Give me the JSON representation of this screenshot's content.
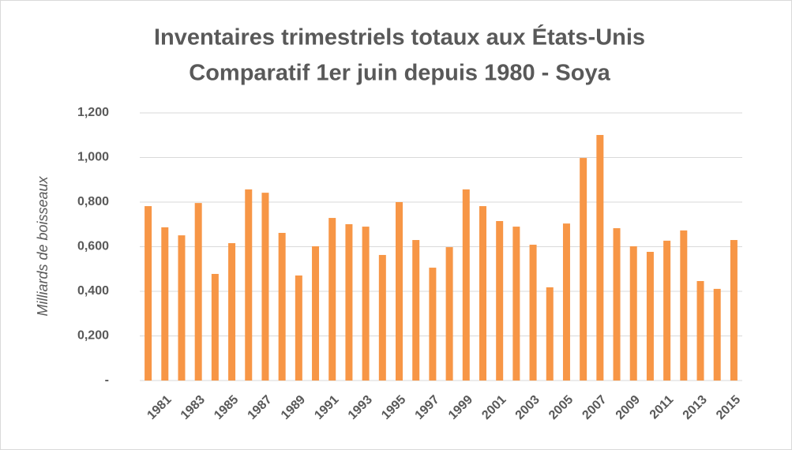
{
  "chart_data": {
    "type": "bar",
    "title": "Inventaires trimestriels totaux aux États-Unis",
    "subtitle": "Comparatif 1er juin depuis 1980 - Soya",
    "y_label": "Milliards de boisseaux",
    "categories": [
      null,
      "1981",
      null,
      "1983",
      null,
      "1985",
      null,
      "1987",
      null,
      "1989",
      null,
      "1991",
      null,
      "1993",
      null,
      "1995",
      null,
      "1997",
      null,
      "1999",
      null,
      "2001",
      null,
      "2003",
      null,
      "2005",
      null,
      "2007",
      null,
      "2009",
      null,
      "2011",
      null,
      "2013",
      null,
      "2015"
    ],
    "values": [
      0.782,
      0.687,
      0.651,
      0.796,
      0.478,
      0.616,
      0.857,
      0.842,
      0.662,
      0.471,
      0.602,
      0.729,
      0.701,
      0.69,
      0.563,
      0.8,
      0.63,
      0.506,
      0.598,
      0.857,
      0.782,
      0.715,
      0.69,
      0.609,
      0.418,
      0.704,
      0.998,
      1.101,
      0.683,
      0.602,
      0.577,
      0.627,
      0.673,
      0.446,
      0.411,
      0.63
    ],
    "color": "#f79646",
    "ylim": [
      0,
      1.2
    ],
    "yticks": [
      {
        "value": 0,
        "label": "-"
      },
      {
        "value": 0.2,
        "label": "0,200"
      },
      {
        "value": 0.4,
        "label": "0,400"
      },
      {
        "value": 0.6,
        "label": "0,600"
      },
      {
        "value": 0.8,
        "label": "0,800"
      },
      {
        "value": 1,
        "label": "1,000"
      },
      {
        "value": 1.2,
        "label": "1,200"
      }
    ],
    "grid": true
  }
}
